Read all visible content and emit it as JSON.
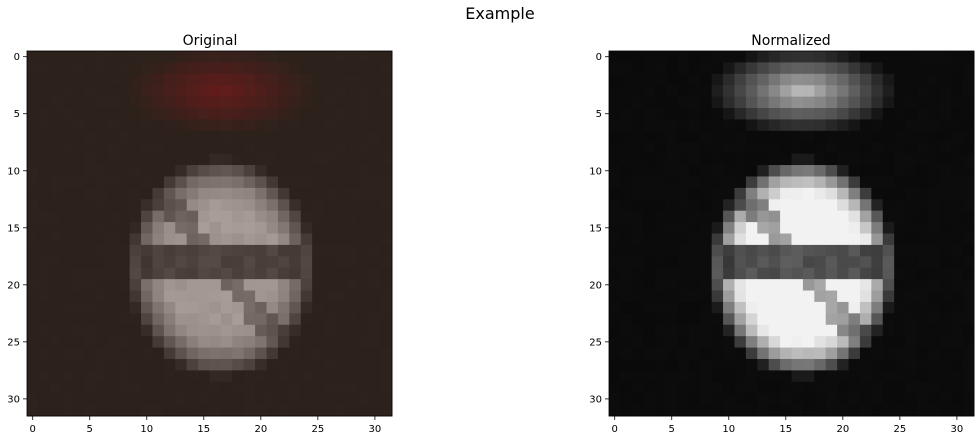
{
  "figure": {
    "suptitle": "Example"
  },
  "chart_data": [
    {
      "type": "heatmap",
      "title": "Original",
      "colormap": "rgb",
      "image_size": [
        32,
        32
      ],
      "xticks": [
        0,
        5,
        10,
        15,
        20,
        25,
        30
      ],
      "yticks": [
        0,
        5,
        10,
        15,
        20,
        25,
        30
      ],
      "xlim": [
        -0.5,
        31.5
      ],
      "ylim": [
        31.5,
        -0.5
      ],
      "xlabel": "",
      "ylabel": "",
      "background_color": "#2c211b",
      "sign_gray_color": "#a79c97",
      "sign_red_color": "#6a1b1a",
      "bar_color": "#3a3436"
    },
    {
      "type": "heatmap",
      "title": "Normalized",
      "colormap": "gray",
      "image_size": [
        32,
        32
      ],
      "xticks": [
        0,
        5,
        10,
        15,
        20,
        25,
        30
      ],
      "yticks": [
        0,
        5,
        10,
        15,
        20,
        25,
        30
      ],
      "xlim": [
        -0.5,
        31.5
      ],
      "ylim": [
        31.5,
        -0.5
      ],
      "xlabel": "",
      "ylabel": "",
      "background_color": "#0a0a0a",
      "sign_light_color": "#f2f2f2"
    }
  ]
}
